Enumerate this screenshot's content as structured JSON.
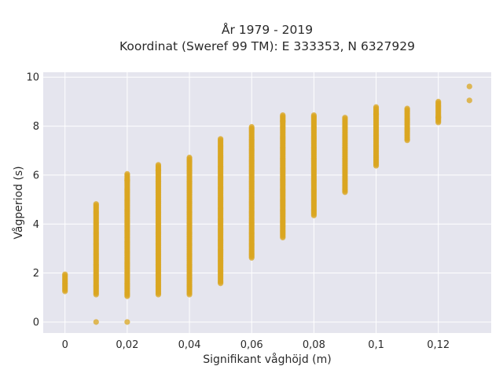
{
  "chart_data": {
    "type": "scatter",
    "title": "År 1979 - 2019",
    "subtitle": "Koordinat (Sweref 99 TM): E 333353, N 6327929",
    "xlabel": "Signifikant våghöjd (m)",
    "ylabel": "Vågperiod (s)",
    "xlim": [
      -0.007,
      0.137
    ],
    "ylim": [
      -0.45,
      10.2
    ],
    "x_ticks": [
      0,
      0.02,
      0.04,
      0.06,
      0.08,
      0.1,
      0.12
    ],
    "x_tick_labels": [
      "0",
      "0,02",
      "0,04",
      "0,06",
      "0,08",
      "0,1",
      "0,12"
    ],
    "y_ticks": [
      0,
      2,
      4,
      6,
      8,
      10
    ],
    "y_tick_labels": [
      "0",
      "2",
      "4",
      "6",
      "8",
      "10"
    ],
    "grid": true,
    "background": "#e5e5ee",
    "marker_color": "#daa520",
    "column_ranges": [
      {
        "x": 0.0,
        "y_min": 1.25,
        "y_max": 1.95
      },
      {
        "x": 0.01,
        "y_min": 1.12,
        "y_max": 4.82
      },
      {
        "x": 0.02,
        "y_min": 1.05,
        "y_max": 6.05
      },
      {
        "x": 0.03,
        "y_min": 1.12,
        "y_max": 6.42
      },
      {
        "x": 0.04,
        "y_min": 1.12,
        "y_max": 6.72
      },
      {
        "x": 0.05,
        "y_min": 1.58,
        "y_max": 7.5
      },
      {
        "x": 0.06,
        "y_min": 2.62,
        "y_max": 7.98
      },
      {
        "x": 0.07,
        "y_min": 3.45,
        "y_max": 8.45
      },
      {
        "x": 0.08,
        "y_min": 4.35,
        "y_max": 8.48
      },
      {
        "x": 0.09,
        "y_min": 5.3,
        "y_max": 8.35
      },
      {
        "x": 0.1,
        "y_min": 6.38,
        "y_max": 8.8
      },
      {
        "x": 0.11,
        "y_min": 7.42,
        "y_max": 8.72
      },
      {
        "x": 0.12,
        "y_min": 8.15,
        "y_max": 9.0
      }
    ],
    "isolated_points": [
      {
        "x": 0.01,
        "y": 0.0
      },
      {
        "x": 0.02,
        "y": 0.0
      },
      {
        "x": 0.02,
        "y": 5.78
      },
      {
        "x": 0.03,
        "y": 6.2
      },
      {
        "x": 0.07,
        "y": 8.2
      },
      {
        "x": 0.1,
        "y": 8.5
      },
      {
        "x": 0.12,
        "y": 8.35
      },
      {
        "x": 0.13,
        "y": 9.62
      },
      {
        "x": 0.13,
        "y": 9.05
      }
    ]
  }
}
